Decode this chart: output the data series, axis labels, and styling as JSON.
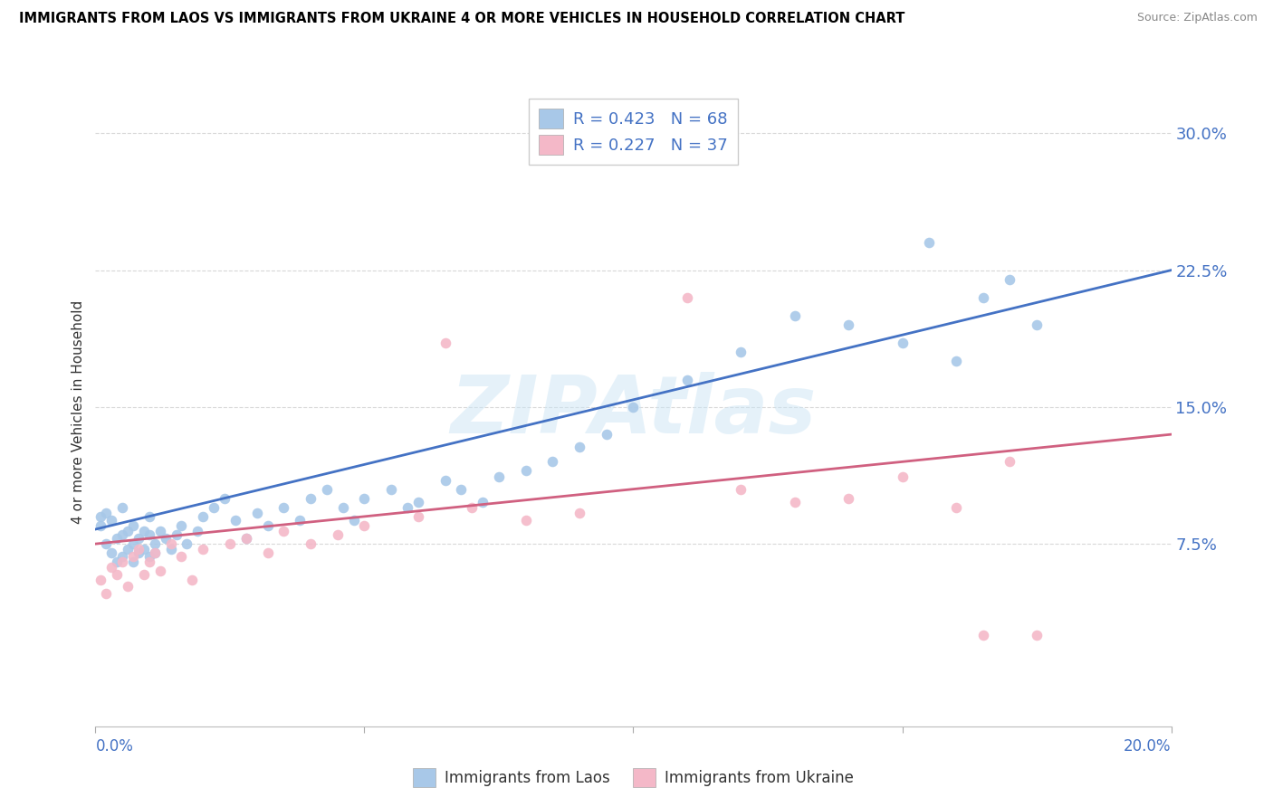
{
  "title": "IMMIGRANTS FROM LAOS VS IMMIGRANTS FROM UKRAINE 4 OR MORE VEHICLES IN HOUSEHOLD CORRELATION CHART",
  "source": "Source: ZipAtlas.com",
  "ylabel": "4 or more Vehicles in Household",
  "ytick_vals": [
    0.075,
    0.15,
    0.225,
    0.3
  ],
  "ytick_labels": [
    "7.5%",
    "15.0%",
    "22.5%",
    "30.0%"
  ],
  "xmin": 0.0,
  "xmax": 0.2,
  "ymin": -0.025,
  "ymax": 0.32,
  "laos_R": "0.423",
  "laos_N": "68",
  "ukraine_R": "0.227",
  "ukraine_N": "37",
  "laos_color": "#a8c8e8",
  "ukraine_color": "#f4b8c8",
  "laos_line_color": "#4472c4",
  "ukraine_line_color": "#d06080",
  "legend_label_laos": "Immigrants from Laos",
  "legend_label_ukraine": "Immigrants from Ukraine",
  "watermark": "ZIPAtlas",
  "background_color": "#ffffff",
  "grid_color": "#d8d8d8",
  "title_color": "#000000",
  "source_color": "#888888",
  "axis_label_color": "#4472c4",
  "laos_scatter_x": [
    0.001,
    0.001,
    0.002,
    0.002,
    0.003,
    0.003,
    0.004,
    0.004,
    0.005,
    0.005,
    0.005,
    0.006,
    0.006,
    0.007,
    0.007,
    0.007,
    0.008,
    0.008,
    0.009,
    0.009,
    0.01,
    0.01,
    0.01,
    0.011,
    0.011,
    0.012,
    0.013,
    0.014,
    0.015,
    0.016,
    0.017,
    0.019,
    0.02,
    0.022,
    0.024,
    0.026,
    0.028,
    0.03,
    0.032,
    0.035,
    0.038,
    0.04,
    0.043,
    0.046,
    0.048,
    0.05,
    0.055,
    0.058,
    0.06,
    0.065,
    0.068,
    0.072,
    0.075,
    0.08,
    0.085,
    0.09,
    0.095,
    0.1,
    0.11,
    0.12,
    0.13,
    0.14,
    0.15,
    0.155,
    0.16,
    0.165,
    0.17,
    0.175
  ],
  "laos_scatter_y": [
    0.085,
    0.09,
    0.075,
    0.092,
    0.07,
    0.088,
    0.065,
    0.078,
    0.08,
    0.068,
    0.095,
    0.072,
    0.082,
    0.065,
    0.075,
    0.085,
    0.078,
    0.07,
    0.072,
    0.082,
    0.068,
    0.08,
    0.09,
    0.075,
    0.07,
    0.082,
    0.078,
    0.072,
    0.08,
    0.085,
    0.075,
    0.082,
    0.09,
    0.095,
    0.1,
    0.088,
    0.078,
    0.092,
    0.085,
    0.095,
    0.088,
    0.1,
    0.105,
    0.095,
    0.088,
    0.1,
    0.105,
    0.095,
    0.098,
    0.11,
    0.105,
    0.098,
    0.112,
    0.115,
    0.12,
    0.128,
    0.135,
    0.15,
    0.165,
    0.18,
    0.2,
    0.195,
    0.185,
    0.24,
    0.175,
    0.21,
    0.22,
    0.195
  ],
  "ukraine_scatter_x": [
    0.001,
    0.002,
    0.003,
    0.004,
    0.005,
    0.006,
    0.007,
    0.008,
    0.009,
    0.01,
    0.011,
    0.012,
    0.014,
    0.016,
    0.018,
    0.02,
    0.025,
    0.028,
    0.032,
    0.035,
    0.04,
    0.045,
    0.05,
    0.06,
    0.065,
    0.07,
    0.08,
    0.09,
    0.11,
    0.12,
    0.13,
    0.14,
    0.15,
    0.16,
    0.165,
    0.17,
    0.175
  ],
  "ukraine_scatter_y": [
    0.055,
    0.048,
    0.062,
    0.058,
    0.065,
    0.052,
    0.068,
    0.072,
    0.058,
    0.065,
    0.07,
    0.06,
    0.075,
    0.068,
    0.055,
    0.072,
    0.075,
    0.078,
    0.07,
    0.082,
    0.075,
    0.08,
    0.085,
    0.09,
    0.185,
    0.095,
    0.088,
    0.092,
    0.21,
    0.105,
    0.098,
    0.1,
    0.112,
    0.095,
    0.025,
    0.12,
    0.025
  ],
  "laos_line_x0": 0.0,
  "laos_line_y0": 0.083,
  "laos_line_x1": 0.2,
  "laos_line_y1": 0.225,
  "ukraine_line_x0": 0.0,
  "ukraine_line_y0": 0.075,
  "ukraine_line_x1": 0.2,
  "ukraine_line_y1": 0.135
}
